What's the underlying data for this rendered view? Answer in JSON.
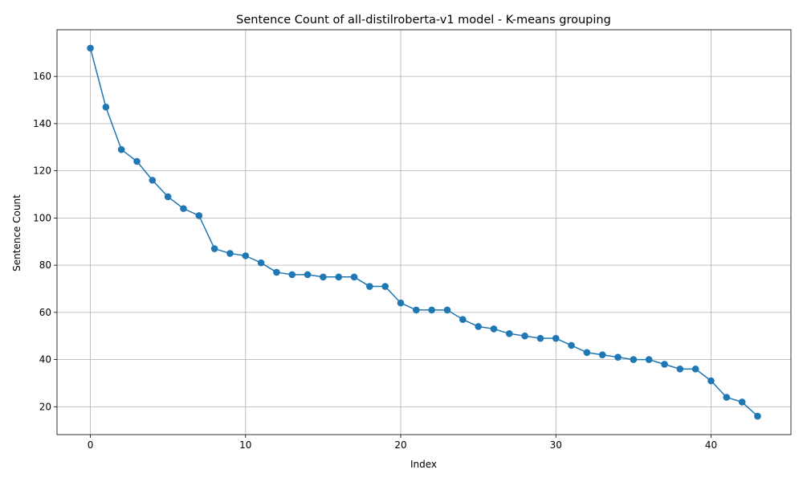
{
  "chart_data": {
    "type": "line",
    "title": "Sentence Count of all-distilroberta-v1 model - K-means grouping",
    "xlabel": "Index",
    "ylabel": "Sentence Count",
    "xlim": [
      -2.15,
      45.15
    ],
    "ylim": [
      8.2,
      179.8
    ],
    "xticks": [
      0,
      10,
      20,
      30,
      40
    ],
    "yticks": [
      20,
      40,
      60,
      80,
      100,
      120,
      140,
      160
    ],
    "grid": true,
    "marker": "circle",
    "color": "#1f77b4",
    "series": [
      {
        "x": [
          0,
          1,
          2,
          3,
          4,
          5,
          6,
          7,
          8,
          9,
          10,
          11,
          12,
          13,
          14,
          15,
          16,
          17,
          18,
          19,
          20,
          21,
          22,
          23,
          24,
          25,
          26,
          27,
          28,
          29,
          30,
          31,
          32,
          33,
          34,
          35,
          36,
          37,
          38,
          39,
          40,
          41,
          42,
          43
        ],
        "values": [
          172,
          147,
          129,
          124,
          116,
          109,
          104,
          101,
          87,
          85,
          84,
          81,
          77,
          76,
          76,
          75,
          75,
          75,
          71,
          71,
          64,
          61,
          61,
          61,
          57,
          54,
          53,
          51,
          50,
          49,
          49,
          46,
          43,
          42,
          41,
          40,
          40,
          38,
          36,
          36,
          31,
          24,
          22,
          16
        ]
      }
    ]
  }
}
